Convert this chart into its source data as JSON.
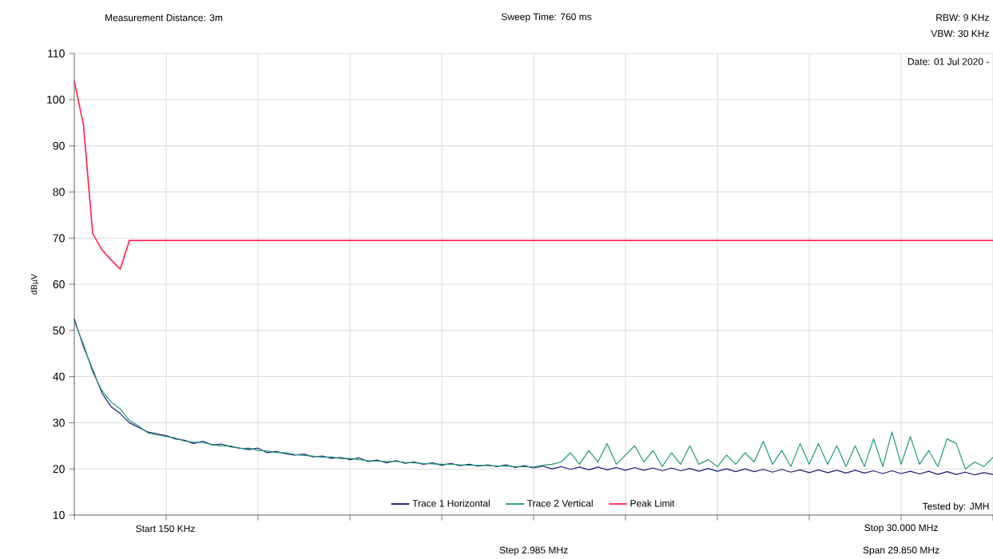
{
  "chart_data": {
    "type": "line",
    "annotations": [
      "Measurement Distance: 3m",
      "Sweep Time: 760 ms",
      "RBW: 9 KHz",
      "VBW: 30 KHz",
      "Date: 01 Jul 2020 -",
      "Tested by: JMH",
      "Start 150 KHz",
      "Stop 30.000 MHz",
      "Step 2.985 MHz",
      "Span 29.850 MHz"
    ],
    "ylabel": "dBµV",
    "categories": [
      null,
      null,
      null,
      null,
      null,
      null,
      null,
      null,
      null,
      null,
      null,
      null,
      null,
      null,
      null,
      null,
      null,
      null,
      null,
      null,
      null,
      null,
      null,
      null,
      null,
      null,
      null,
      null,
      null,
      null,
      null,
      null,
      null,
      null,
      null,
      null,
      null,
      null,
      null,
      null,
      null,
      null,
      null,
      null,
      null,
      null,
      null,
      null,
      null,
      null,
      null,
      null,
      null,
      null,
      null,
      null,
      null,
      null,
      null,
      null,
      null,
      null,
      null,
      null,
      null,
      null,
      null,
      null,
      null,
      null,
      null,
      null,
      null,
      null,
      null,
      null,
      null,
      null,
      null,
      null,
      null,
      null,
      null,
      null,
      null,
      null,
      null,
      null,
      null,
      null,
      null,
      null,
      null,
      null,
      null,
      null,
      null,
      null,
      null,
      null,
      null
    ],
    "ylim": [
      10,
      110
    ],
    "yticks": [
      10,
      20,
      30,
      40,
      50,
      60,
      70,
      80,
      90,
      100,
      110
    ],
    "grid": true,
    "legend": "bottom",
    "marker": "none",
    "line_style": "solid",
    "series": [
      {
        "name": "Trace 1 Horizontal",
        "color": "#1c1a7e",
        "values": [
          52.5,
          46.5,
          41.5,
          36.5,
          33.5,
          32,
          30,
          29,
          28,
          27.6,
          27.2,
          26.5,
          26.2,
          25.5,
          26,
          25.2,
          25.4,
          24.8,
          24.5,
          24.2,
          24.5,
          23.5,
          23.8,
          23.3,
          23,
          23.2,
          22.6,
          22.8,
          22.3,
          22.5,
          22,
          22.4,
          21.6,
          21.9,
          21.3,
          21.8,
          21.2,
          21.5,
          21,
          21.3,
          20.8,
          21.2,
          20.7,
          21,
          20.6,
          20.9,
          20.5,
          20.9,
          20.3,
          20.7,
          20.2,
          20.6,
          20,
          20.5,
          19.9,
          20.4,
          19.8,
          20.4,
          19.8,
          20.3,
          19.7,
          20.3,
          19.7,
          20.2,
          19.6,
          20.2,
          19.6,
          20.1,
          19.5,
          20.1,
          19.5,
          20,
          19.4,
          20,
          19.4,
          19.9,
          19.3,
          19.9,
          19.3,
          19.8,
          19.2,
          19.8,
          19.2,
          19.7,
          19.1,
          19.7,
          19.1,
          19.6,
          19,
          19.6,
          19,
          19.5,
          18.9,
          19.5,
          18.8,
          19.4,
          18.8,
          19.3,
          18.7,
          19.2,
          18.8
        ]
      },
      {
        "name": "Trace 2 Vertical",
        "color": "#1f9a78",
        "values": [
          52,
          47,
          41,
          37,
          34.5,
          33,
          30.5,
          29.3,
          27.8,
          27.4,
          27,
          26.7,
          26,
          25.8,
          25.7,
          25.3,
          25,
          25,
          24.4,
          24.5,
          24,
          23.9,
          23.5,
          23.5,
          23.1,
          22.9,
          22.8,
          22.5,
          22.6,
          22.2,
          22.3,
          22,
          21.8,
          21.7,
          21.6,
          21.6,
          21.4,
          21.3,
          21.2,
          21.1,
          21,
          21,
          20.9,
          20.8,
          20.8,
          20.7,
          20.6,
          20.6,
          20.5,
          20.5,
          20.4,
          20.8,
          21,
          21.5,
          23.5,
          21,
          24,
          21.5,
          25.5,
          21,
          23,
          25,
          21.5,
          24,
          20.5,
          23.5,
          21,
          25,
          21,
          22,
          20.5,
          23,
          21,
          23.5,
          21.5,
          26,
          21,
          24,
          20.5,
          25.5,
          21,
          25.5,
          21,
          25,
          20.5,
          25,
          20.5,
          26.5,
          20.5,
          28,
          21,
          27,
          21,
          24,
          20.5,
          26.5,
          25.5,
          20,
          21.5,
          20.5,
          22.5
        ]
      },
      {
        "name": "Peak Limit",
        "color": "#ff2a55",
        "values": [
          104,
          94.5,
          71,
          67.5,
          65.3,
          63.3,
          69.5,
          69.5,
          69.5,
          69.5,
          69.5,
          69.5,
          69.5,
          69.5,
          69.5,
          69.5,
          69.5,
          69.5,
          69.5,
          69.5,
          69.5,
          69.5,
          69.5,
          69.5,
          69.5,
          69.5,
          69.5,
          69.5,
          69.5,
          69.5,
          69.5,
          69.5,
          69.5,
          69.5,
          69.5,
          69.5,
          69.5,
          69.5,
          69.5,
          69.5,
          69.5,
          69.5,
          69.5,
          69.5,
          69.5,
          69.5,
          69.5,
          69.5,
          69.5,
          69.5,
          69.5,
          69.5,
          69.5,
          69.5,
          69.5,
          69.5,
          69.5,
          69.5,
          69.5,
          69.5,
          69.5,
          69.5,
          69.5,
          69.5,
          69.5,
          69.5,
          69.5,
          69.5,
          69.5,
          69.5,
          69.5,
          69.5,
          69.5,
          69.5,
          69.5,
          69.5,
          69.5,
          69.5,
          69.5,
          69.5,
          69.5,
          69.5,
          69.5,
          69.5,
          69.5,
          69.5,
          69.5,
          69.5,
          69.5,
          69.5,
          69.5,
          69.5,
          69.5,
          69.5,
          69.5,
          69.5,
          69.5,
          69.5,
          69.5,
          69.5,
          69.5
        ]
      }
    ]
  }
}
